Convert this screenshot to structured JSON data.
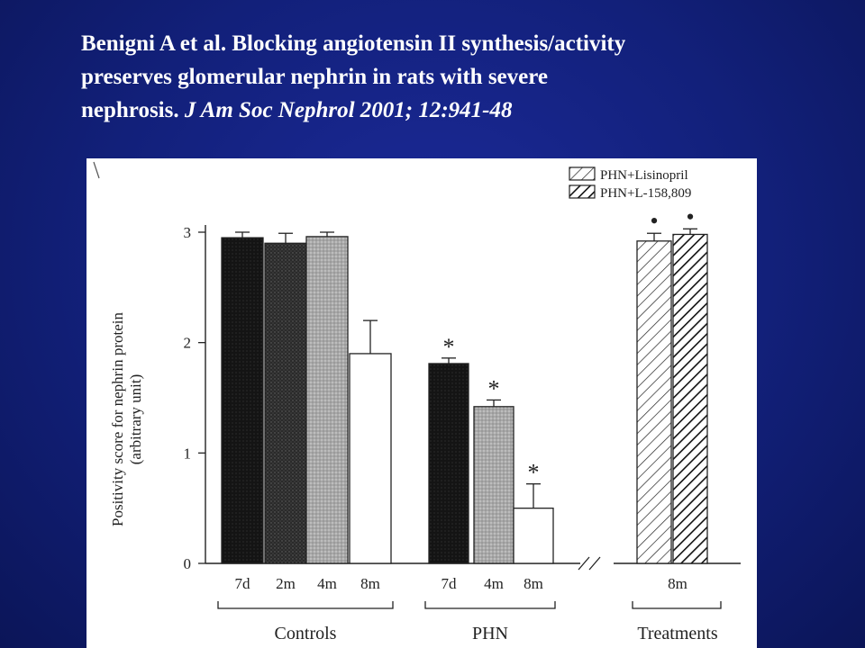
{
  "citation": {
    "line1": "Benigni A et al. Blocking angiotensin II synthesis/activity",
    "line2": "preserves glomerular nephrin in rats with severe",
    "line3_plain": "nephrosis. ",
    "line3_journal": "J Am Soc Nephrol 2001; 12:941-48"
  },
  "chart_data": {
    "type": "bar",
    "ylabel": "Positivity score for nephrin protein",
    "ylabel_unit": "(arbitrary unit)",
    "ylim": [
      0,
      3
    ],
    "yticks": [
      "0",
      "1",
      "2",
      "3"
    ],
    "grid": false,
    "legend": {
      "placement": "top-right",
      "entries": [
        {
          "label": "PHN+Lisinopril",
          "pattern": "hatch-light"
        },
        {
          "label": "PHN+L-158,809",
          "pattern": "hatch-bold"
        }
      ]
    },
    "groups": [
      {
        "name": "Controls",
        "bars": [
          {
            "label": "7d",
            "value": 2.95,
            "error": 0.05,
            "fill": "black",
            "mark": ""
          },
          {
            "label": "2m",
            "value": 2.9,
            "error": 0.09,
            "fill": "darkgray",
            "mark": ""
          },
          {
            "label": "4m",
            "value": 2.96,
            "error": 0.04,
            "fill": "lightgray",
            "mark": ""
          },
          {
            "label": "8m",
            "value": 1.9,
            "error": 0.3,
            "fill": "white",
            "mark": ""
          }
        ]
      },
      {
        "name": "PHN",
        "bars": [
          {
            "label": "7d",
            "value": 1.81,
            "error": 0.05,
            "fill": "black",
            "mark": "*"
          },
          {
            "label": "4m",
            "value": 1.42,
            "error": 0.06,
            "fill": "lightgray",
            "mark": "*"
          },
          {
            "label": "8m",
            "value": 0.5,
            "error": 0.22,
            "fill": "white",
            "mark": "*"
          }
        ]
      },
      {
        "name": "Treatments",
        "shared_label": "8m",
        "bars": [
          {
            "label": "PHN+Lisinopril",
            "value": 2.92,
            "error": 0.07,
            "fill": "hatch-light",
            "mark": "•"
          },
          {
            "label": "PHN+L-158,809",
            "value": 2.98,
            "error": 0.05,
            "fill": "hatch-bold",
            "mark": "•"
          }
        ]
      }
    ]
  }
}
